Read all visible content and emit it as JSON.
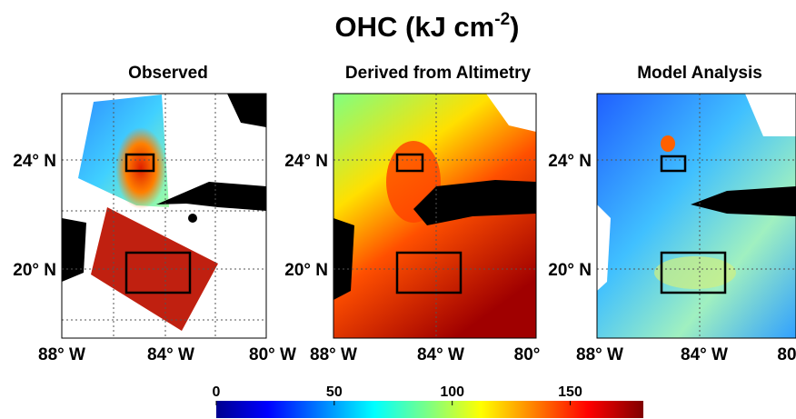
{
  "title": {
    "main": "OHC (kJ cm",
    "sup": "-2",
    "end": ")"
  },
  "panels": [
    {
      "title": "Observed",
      "y_labels": [
        "24° N",
        "20° N"
      ],
      "x_labels": [
        "88° W",
        "84° W",
        "80° W"
      ]
    },
    {
      "title": "Derived from Altimetry",
      "y_labels": [
        "24° N",
        "20° N"
      ],
      "x_labels": [
        "88° W",
        "84° W",
        "80°"
      ]
    },
    {
      "title": "Model Analysis",
      "y_labels": [
        "24° N",
        "20° N"
      ],
      "x_labels": [
        "88° W",
        "84° W",
        "80"
      ]
    }
  ],
  "colorbar": {
    "lim": [
      0,
      181
    ],
    "ticks": [
      0,
      50,
      100,
      150
    ]
  }
}
